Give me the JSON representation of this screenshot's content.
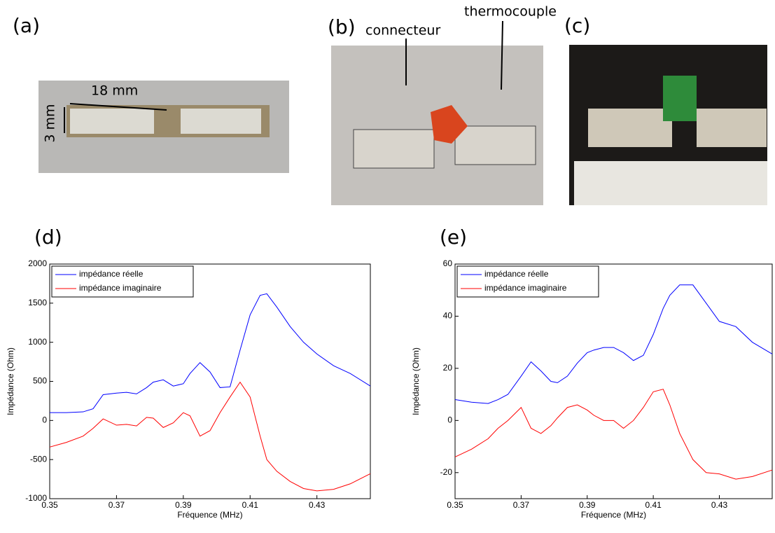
{
  "photos": [
    {
      "label": "(a)",
      "annotations": [
        "18 mm",
        "3 mm"
      ]
    },
    {
      "label": "(b)",
      "annotations": [
        "connecteur",
        "thermocouple"
      ]
    },
    {
      "label": "(c)"
    }
  ],
  "chart_data": [
    {
      "type": "line",
      "label": "(d)",
      "xlabel": "Fréquence (MHz)",
      "ylabel": "Impédance (Ohm)",
      "legend": "upper left",
      "x": [
        0.35,
        0.355,
        0.36,
        0.363,
        0.366,
        0.37,
        0.373,
        0.376,
        0.379,
        0.381,
        0.384,
        0.387,
        0.39,
        0.392,
        0.395,
        0.398,
        0.401,
        0.404,
        0.407,
        0.41,
        0.413,
        0.415,
        0.418,
        0.422,
        0.426,
        0.43,
        0.435,
        0.44,
        0.446
      ],
      "series": [
        {
          "name": "impédance réelle",
          "color": "#0000ff",
          "values": [
            100,
            100,
            110,
            150,
            330,
            350,
            360,
            340,
            420,
            490,
            520,
            440,
            470,
            600,
            740,
            620,
            420,
            430,
            900,
            1350,
            1600,
            1620,
            1450,
            1200,
            1000,
            850,
            700,
            600,
            440
          ]
        },
        {
          "name": "impédance imaginaire",
          "color": "#ff0000",
          "values": [
            -340,
            -280,
            -200,
            -100,
            20,
            -60,
            -50,
            -70,
            40,
            30,
            -90,
            -30,
            100,
            60,
            -200,
            -130,
            100,
            300,
            490,
            300,
            -200,
            -500,
            -650,
            -780,
            -870,
            -900,
            -880,
            -810,
            -680
          ]
        }
      ],
      "xlim": [
        0.35,
        0.446
      ],
      "xticks": [
        0.35,
        0.37,
        0.39,
        0.41,
        0.43
      ],
      "ylim": [
        -1000,
        2000
      ],
      "yticks": [
        -1000,
        -500,
        0,
        500,
        1000,
        1500,
        2000
      ]
    },
    {
      "type": "line",
      "label": "(e)",
      "xlabel": "Fréquence (MHz)",
      "ylabel": "Impédance (Ohm)",
      "legend": "upper left",
      "x": [
        0.35,
        0.355,
        0.36,
        0.363,
        0.366,
        0.37,
        0.373,
        0.376,
        0.379,
        0.381,
        0.384,
        0.387,
        0.39,
        0.392,
        0.395,
        0.398,
        0.401,
        0.404,
        0.407,
        0.41,
        0.413,
        0.415,
        0.418,
        0.422,
        0.426,
        0.43,
        0.435,
        0.44,
        0.446
      ],
      "series": [
        {
          "name": "impédance réelle",
          "color": "#0000ff",
          "values": [
            8,
            7,
            6.5,
            8,
            10,
            17,
            22.5,
            19,
            15,
            14.5,
            17,
            22,
            26,
            27,
            28,
            28,
            26,
            23,
            25,
            33,
            43,
            48,
            52,
            52,
            45,
            38,
            36,
            30,
            25.5
          ]
        },
        {
          "name": "impédance imaginaire",
          "color": "#ff0000",
          "values": [
            -14,
            -11,
            -7,
            -3,
            0,
            5,
            -3,
            -5,
            -2,
            1,
            5,
            6,
            4,
            2,
            0,
            0,
            -3,
            0,
            5,
            11,
            12,
            6,
            -5,
            -15,
            -20,
            -20.5,
            -22.5,
            -21.5,
            -19
          ]
        }
      ],
      "xlim": [
        0.35,
        0.446
      ],
      "xticks": [
        0.35,
        0.37,
        0.39,
        0.41,
        0.43
      ],
      "ylim": [
        -30,
        60
      ],
      "yticks": [
        -20,
        0,
        20,
        40,
        60
      ]
    }
  ]
}
